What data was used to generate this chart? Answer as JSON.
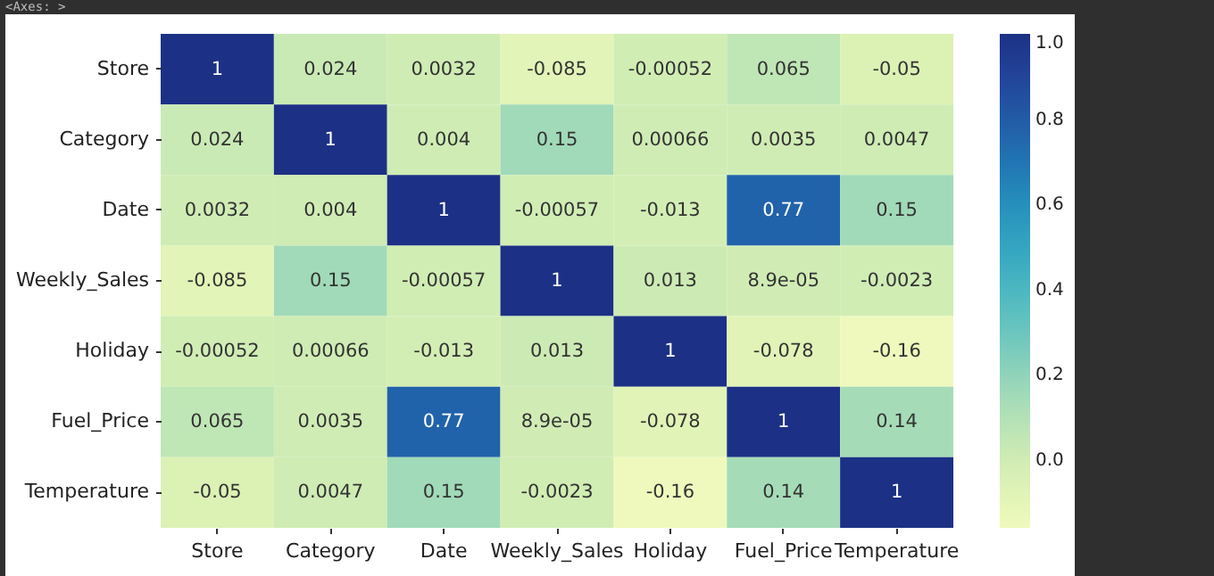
{
  "chart_data": {
    "type": "heatmap",
    "annotations": [
      "<Axes: >"
    ],
    "categories": [
      "Store",
      "Category",
      "Date",
      "Weekly_Sales",
      "Holiday",
      "Fuel_Price",
      "Temperature"
    ],
    "y_categories": [
      "Store",
      "Category",
      "Date",
      "Weekly_Sales",
      "Holiday",
      "Fuel_Price",
      "Temperature"
    ],
    "cells": [
      [
        1,
        0.024,
        0.0032,
        -0.085,
        -0.00052,
        0.065,
        -0.05
      ],
      [
        0.024,
        1,
        0.004,
        0.15,
        0.00066,
        0.0035,
        0.0047
      ],
      [
        0.0032,
        0.004,
        1,
        -0.00057,
        -0.013,
        0.77,
        0.15
      ],
      [
        -0.085,
        0.15,
        -0.00057,
        1,
        0.013,
        8.9e-05,
        -0.0023
      ],
      [
        -0.00052,
        0.00066,
        -0.013,
        0.013,
        1,
        -0.078,
        -0.16
      ],
      [
        0.065,
        0.0035,
        0.77,
        8.9e-05,
        -0.078,
        1,
        0.14
      ],
      [
        -0.05,
        0.0047,
        0.15,
        -0.0023,
        -0.16,
        0.14,
        1
      ]
    ],
    "cell_labels": [
      [
        "1",
        "0.024",
        "0.0032",
        "-0.085",
        "-0.00052",
        "0.065",
        "-0.05"
      ],
      [
        "0.024",
        "1",
        "0.004",
        "0.15",
        "0.00066",
        "0.0035",
        "0.0047"
      ],
      [
        "0.0032",
        "0.004",
        "1",
        "-0.00057",
        "-0.013",
        "0.77",
        "0.15"
      ],
      [
        "-0.085",
        "0.15",
        "-0.00057",
        "1",
        "0.013",
        "8.9e-05",
        "-0.0023"
      ],
      [
        "-0.00052",
        "0.00066",
        "-0.013",
        "0.013",
        "1",
        "-0.078",
        "-0.16"
      ],
      [
        "0.065",
        "0.0035",
        "0.77",
        "8.9e-05",
        "-0.078",
        "1",
        "0.14"
      ],
      [
        "-0.05",
        "0.0047",
        "0.15",
        "-0.0023",
        "-0.16",
        "0.14",
        "1"
      ]
    ],
    "data_labels": true,
    "clim": [
      -0.16,
      1.0
    ],
    "cticks": [
      {
        "value": 0,
        "label": "0.0"
      },
      {
        "value": 0.2,
        "label": "0.2"
      },
      {
        "value": 0.4,
        "label": "0.4"
      },
      {
        "value": 0.6,
        "label": "0.6"
      },
      {
        "value": 0.8,
        "label": "0.8"
      },
      {
        "value": 1,
        "label": "1.0"
      }
    ]
  }
}
